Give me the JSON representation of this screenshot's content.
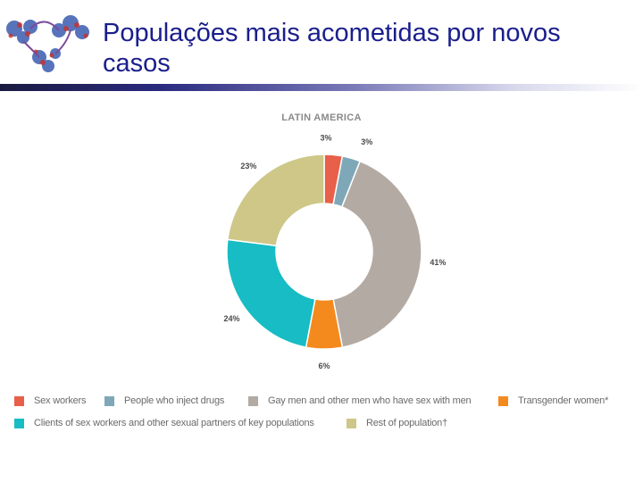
{
  "slide": {
    "title": "Populações mais acometidas por novos casos"
  },
  "chart_data": {
    "type": "pie",
    "title": "LATIN AMERICA",
    "series": [
      {
        "name": "Sex workers",
        "value": 3,
        "label": "3%",
        "color": "#e8604a"
      },
      {
        "name": "People who inject drugs",
        "value": 3,
        "label": "3%",
        "color": "#7ea8b8"
      },
      {
        "name": "Gay men and other men who have sex with men",
        "value": 41,
        "label": "41%",
        "color": "#b3aaa3"
      },
      {
        "name": "Transgender women*",
        "value": 6,
        "label": "6%",
        "color": "#f48a1e"
      },
      {
        "name": "Clients of sex workers and other sexual partners of key populations",
        "value": 24,
        "label": "24%",
        "color": "#17bcc4"
      },
      {
        "name": "Rest of population†",
        "value": 23,
        "label": "23%",
        "color": "#cec787"
      }
    ],
    "legend_position": "bottom"
  }
}
